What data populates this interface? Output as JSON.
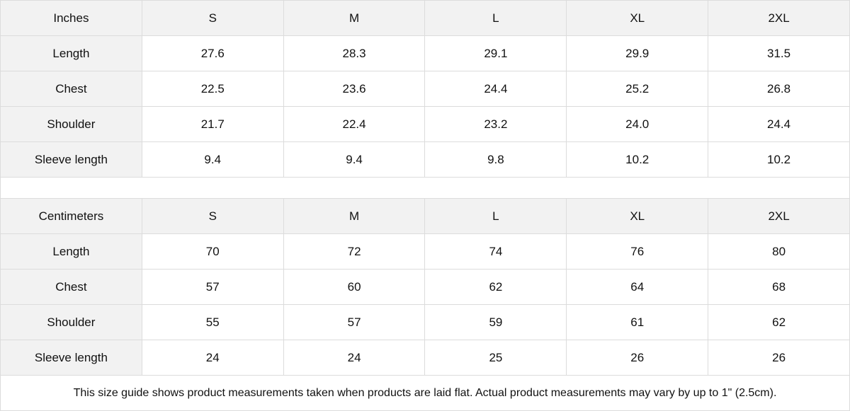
{
  "inches": {
    "header": [
      "Inches",
      "S",
      "M",
      "L",
      "XL",
      "2XL"
    ],
    "rows": [
      [
        "Length",
        "27.6",
        "28.3",
        "29.1",
        "29.9",
        "31.5"
      ],
      [
        "Chest",
        "22.5",
        "23.6",
        "24.4",
        "25.2",
        "26.8"
      ],
      [
        "Shoulder",
        "21.7",
        "22.4",
        "23.2",
        "24.0",
        "24.4"
      ],
      [
        "Sleeve length",
        "9.4",
        "9.4",
        "9.8",
        "10.2",
        "10.2"
      ]
    ]
  },
  "centimeters": {
    "header": [
      "Centimeters",
      "S",
      "M",
      "L",
      "XL",
      "2XL"
    ],
    "rows": [
      [
        "Length",
        "70",
        "72",
        "74",
        "76",
        "80"
      ],
      [
        "Chest",
        "57",
        "60",
        "62",
        "64",
        "68"
      ],
      [
        "Shoulder",
        "55",
        "57",
        "59",
        "61",
        "62"
      ],
      [
        "Sleeve length",
        "24",
        "24",
        "25",
        "26",
        "26"
      ]
    ]
  },
  "note": "This size guide shows product measurements taken when products are laid flat.  Actual product measurements may vary by up to 1\" (2.5cm).",
  "colors": {
    "header_bg": "#f2f2f2",
    "border": "#dcdcdc"
  }
}
